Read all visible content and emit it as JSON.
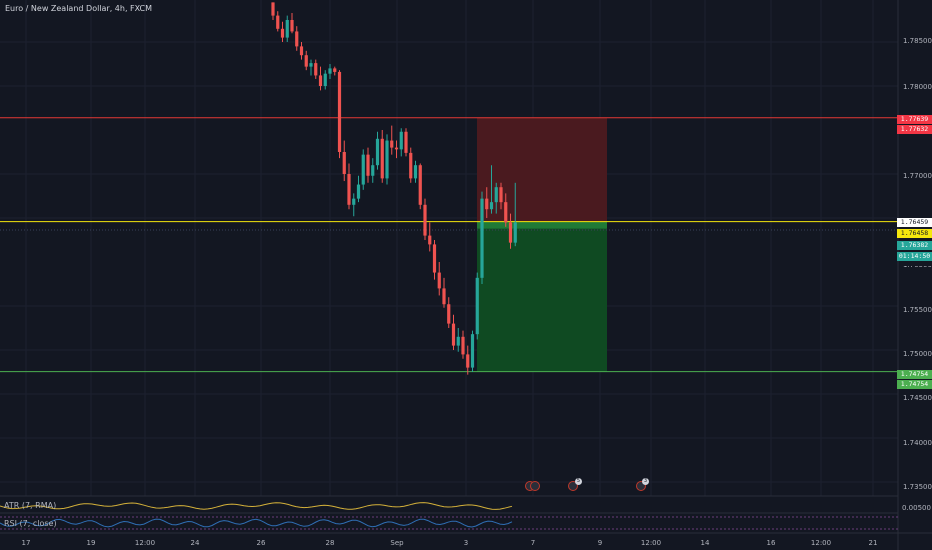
{
  "header": {
    "symbol_title": "Euro / New Zealand Dollar, 4h, FXCM"
  },
  "price_axis": {
    "labels": [
      "1.78500",
      "1.78000",
      "1.77000",
      "1.75500",
      "1.75000",
      "1.74500",
      "1.74000",
      "1.73500"
    ],
    "partially_hidden_label": "1.76500"
  },
  "price_badges": [
    {
      "text": "1.77639",
      "bg": "#f23645",
      "fg": "#ffffff"
    },
    {
      "text": "1.77632",
      "bg": "#f23645",
      "fg": "#ffffff"
    },
    {
      "text": "1.76459",
      "bg": "#ffffff",
      "fg": "#131722"
    },
    {
      "text": "1.76458",
      "bg": "#f5e70d",
      "fg": "#131722"
    },
    {
      "text": "1.76382",
      "bg": "#26a69a",
      "fg": "#ffffff"
    },
    {
      "text": "01:14:50",
      "bg": "#26a69a",
      "fg": "#ffffff"
    },
    {
      "text": "1.74754",
      "bg": "#4caf50",
      "fg": "#ffffff"
    },
    {
      "text": "1.74754",
      "bg": "#4caf50",
      "fg": "#ffffff"
    }
  ],
  "time_axis": {
    "labels": [
      "17",
      "19",
      "12:00",
      "24",
      "26",
      "28",
      "Sep",
      "3",
      "7",
      "9",
      "12:00",
      "14",
      "16",
      "12:00",
      "21"
    ]
  },
  "indicators": {
    "atr": {
      "label": "ATR (7, RMA)",
      "value": "0.00500"
    },
    "rsi": {
      "label": "RSI (7, close)"
    }
  },
  "position_tool": {
    "stop_price": 1.77639,
    "entry_price": 1.76459,
    "target_price": 1.74754,
    "stop_color": "#4a1a1f",
    "target_color": "#0f4a22"
  },
  "lines": {
    "red_line": 1.77639,
    "yellow_line": 1.76459,
    "green_line": 1.74754
  },
  "event_markers": [
    {
      "icon": "calendar-event-icon",
      "badge": ""
    },
    {
      "icon": "calendar-event-icon",
      "badge": "5"
    },
    {
      "icon": "calendar-event-icon",
      "badge": "3"
    }
  ],
  "colors": {
    "up": "#26a69a",
    "down": "#ef5350",
    "background": "#131722",
    "atr_line": "#d4b13a",
    "rsi_line": "#2f6fb5"
  },
  "chart_data": {
    "type": "candlestick",
    "y_range": [
      1.733,
      1.7895
    ],
    "candles": [
      [
        1.7895,
        1.7895,
        1.7875,
        1.788
      ],
      [
        1.788,
        1.7885,
        1.7862,
        1.7865
      ],
      [
        1.7865,
        1.7873,
        1.785,
        1.7855
      ],
      [
        1.7855,
        1.788,
        1.785,
        1.7875
      ],
      [
        1.7875,
        1.7883,
        1.786,
        1.7862
      ],
      [
        1.7862,
        1.7868,
        1.784,
        1.7845
      ],
      [
        1.7845,
        1.785,
        1.783,
        1.7835
      ],
      [
        1.7835,
        1.784,
        1.7818,
        1.7822
      ],
      [
        1.7822,
        1.783,
        1.7812,
        1.7826
      ],
      [
        1.7826,
        1.783,
        1.7808,
        1.7812
      ],
      [
        1.7812,
        1.7822,
        1.7795,
        1.78
      ],
      [
        1.78,
        1.7818,
        1.7796,
        1.7814
      ],
      [
        1.7814,
        1.7825,
        1.7808,
        1.782
      ],
      [
        1.782,
        1.7822,
        1.7812,
        1.7816
      ],
      [
        1.7816,
        1.7818,
        1.7718,
        1.7725
      ],
      [
        1.7725,
        1.7738,
        1.7692,
        1.77
      ],
      [
        1.77,
        1.7712,
        1.766,
        1.7665
      ],
      [
        1.7665,
        1.7678,
        1.7652,
        1.7672
      ],
      [
        1.7672,
        1.7698,
        1.7668,
        1.7688
      ],
      [
        1.7688,
        1.7728,
        1.7682,
        1.7722
      ],
      [
        1.7722,
        1.773,
        1.769,
        1.7698
      ],
      [
        1.7698,
        1.7718,
        1.769,
        1.771
      ],
      [
        1.771,
        1.7748,
        1.7705,
        1.774
      ],
      [
        1.774,
        1.775,
        1.769,
        1.7695
      ],
      [
        1.7695,
        1.7745,
        1.7688,
        1.7738
      ],
      [
        1.7738,
        1.7755,
        1.7722,
        1.773
      ],
      [
        1.773,
        1.7738,
        1.7718,
        1.7728
      ],
      [
        1.7728,
        1.7752,
        1.772,
        1.7748
      ],
      [
        1.7748,
        1.7752,
        1.772,
        1.7724
      ],
      [
        1.7724,
        1.773,
        1.769,
        1.7695
      ],
      [
        1.7695,
        1.7715,
        1.769,
        1.771
      ],
      [
        1.771,
        1.7712,
        1.766,
        1.7665
      ],
      [
        1.7665,
        1.7672,
        1.7625,
        1.763
      ],
      [
        1.763,
        1.7645,
        1.7612,
        1.762
      ],
      [
        1.762,
        1.7625,
        1.758,
        1.7588
      ],
      [
        1.7588,
        1.76,
        1.7562,
        1.757
      ],
      [
        1.757,
        1.7582,
        1.7548,
        1.7552
      ],
      [
        1.7552,
        1.756,
        1.7525,
        1.753
      ],
      [
        1.753,
        1.754,
        1.75,
        1.7505
      ],
      [
        1.7505,
        1.7525,
        1.7498,
        1.7515
      ],
      [
        1.7515,
        1.7522,
        1.749,
        1.7495
      ],
      [
        1.7495,
        1.7505,
        1.7472,
        1.748
      ],
      [
        1.748,
        1.7522,
        1.7475,
        1.7518
      ],
      [
        1.7518,
        1.7588,
        1.7512,
        1.7582
      ],
      [
        1.7582,
        1.768,
        1.7575,
        1.7672
      ],
      [
        1.7672,
        1.7685,
        1.765,
        1.766
      ],
      [
        1.766,
        1.771,
        1.7655,
        1.7668
      ],
      [
        1.7668,
        1.769,
        1.7655,
        1.7685
      ],
      [
        1.7685,
        1.769,
        1.766,
        1.7668
      ],
      [
        1.7668,
        1.7678,
        1.764,
        1.7645
      ],
      [
        1.7645,
        1.7655,
        1.7615,
        1.7622
      ],
      [
        1.7622,
        1.769,
        1.7618,
        1.7645
      ]
    ]
  }
}
